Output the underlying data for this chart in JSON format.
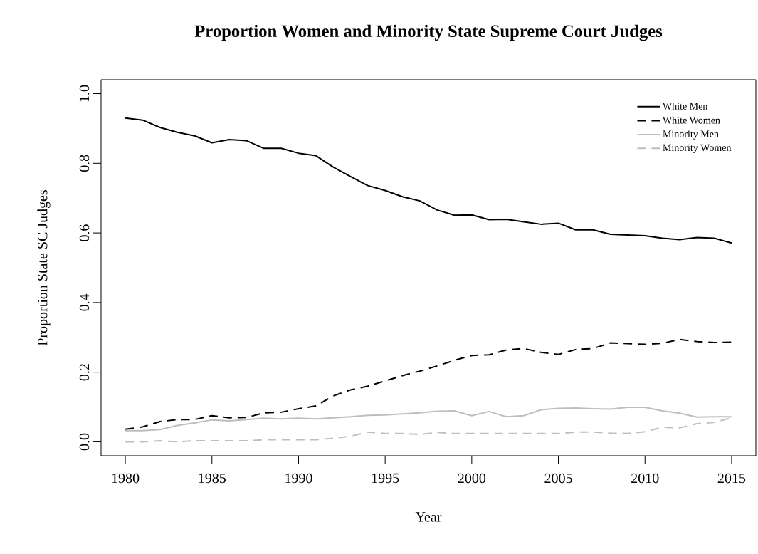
{
  "chart_data": {
    "type": "line",
    "title": "Proportion Women and Minority State Supreme Court Judges",
    "xlabel": "Year",
    "ylabel": "Proportion State SC Judges",
    "x": [
      1980,
      1981,
      1982,
      1983,
      1984,
      1985,
      1986,
      1987,
      1988,
      1989,
      1990,
      1991,
      1992,
      1993,
      1994,
      1995,
      1996,
      1997,
      1998,
      1999,
      2000,
      2001,
      2002,
      2003,
      2004,
      2005,
      2006,
      2007,
      2008,
      2009,
      2010,
      2011,
      2012,
      2013,
      2014,
      2015
    ],
    "xlim": [
      1978.6,
      2016.4
    ],
    "ylim": [
      -0.04,
      1.04
    ],
    "xticks": [
      1980,
      1985,
      1990,
      1995,
      2000,
      2005,
      2010,
      2015
    ],
    "yticks": [
      {
        "value": 0,
        "label": "0.0"
      },
      {
        "value": 0.2,
        "label": "0.2"
      },
      {
        "value": 0.4,
        "label": "0.4"
      },
      {
        "value": 0.6,
        "label": "0.6"
      },
      {
        "value": 0.8,
        "label": "0.8"
      },
      {
        "value": 1,
        "label": "1.0"
      }
    ],
    "legend": "top right",
    "grid": false,
    "marker": "none",
    "series": [
      {
        "name": "White Men",
        "color": "#000000",
        "line_style": "solid",
        "values": [
          0.93,
          0.924,
          0.903,
          0.889,
          0.879,
          0.859,
          0.868,
          0.865,
          0.843,
          0.843,
          0.829,
          0.822,
          0.789,
          0.762,
          0.736,
          0.722,
          0.704,
          0.692,
          0.666,
          0.651,
          0.652,
          0.638,
          0.639,
          0.632,
          0.625,
          0.628,
          0.609,
          0.609,
          0.596,
          0.594,
          0.592,
          0.585,
          0.581,
          0.587,
          0.585,
          0.571
        ]
      },
      {
        "name": "White Women",
        "color": "#000000",
        "line_style": "dashed",
        "values": [
          0.036,
          0.043,
          0.058,
          0.064,
          0.064,
          0.075,
          0.069,
          0.07,
          0.083,
          0.085,
          0.095,
          0.103,
          0.132,
          0.149,
          0.16,
          0.175,
          0.19,
          0.203,
          0.218,
          0.234,
          0.248,
          0.25,
          0.264,
          0.268,
          0.257,
          0.251,
          0.265,
          0.268,
          0.284,
          0.282,
          0.28,
          0.283,
          0.294,
          0.288,
          0.285,
          0.286
        ]
      },
      {
        "name": "Minority Men",
        "color": "#bebebe",
        "line_style": "solid",
        "values": [
          0.032,
          0.032,
          0.035,
          0.047,
          0.054,
          0.063,
          0.06,
          0.064,
          0.068,
          0.066,
          0.068,
          0.066,
          0.069,
          0.072,
          0.076,
          0.077,
          0.08,
          0.083,
          0.088,
          0.089,
          0.075,
          0.087,
          0.072,
          0.075,
          0.092,
          0.096,
          0.097,
          0.095,
          0.094,
          0.099,
          0.099,
          0.089,
          0.082,
          0.071,
          0.072,
          0.072
        ]
      },
      {
        "name": "Minority Women",
        "color": "#bebebe",
        "line_style": "dashed",
        "values": [
          0,
          0,
          0.003,
          0,
          0.003,
          0.003,
          0.003,
          0.003,
          0.006,
          0.006,
          0.006,
          0.006,
          0.01,
          0.016,
          0.028,
          0.024,
          0.024,
          0.021,
          0.027,
          0.024,
          0.024,
          0.024,
          0.024,
          0.024,
          0.024,
          0.024,
          0.028,
          0.028,
          0.025,
          0.024,
          0.029,
          0.042,
          0.04,
          0.052,
          0.056,
          0.069
        ]
      }
    ]
  }
}
